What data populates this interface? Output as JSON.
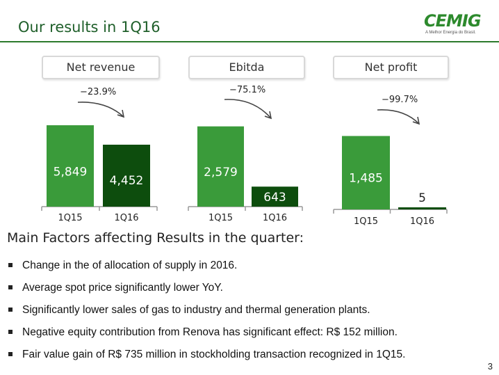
{
  "page": {
    "title": "Our results in 1Q16",
    "logo": {
      "name": "CEMIG",
      "tagline": "A Melhor Energia do Brasil."
    },
    "page_number": "3"
  },
  "section": {
    "heading": "Main Factors affecting Results in the quarter:",
    "factors": [
      "Change in the of allocation of supply in 2016.",
      "Average spot price significantly lower YoY.",
      "Significantly lower sales of gas to industry and thermal generation plants.",
      "Negative equity contribution from Renova has significant effect:  R$ 152 million.",
      "Fair value gain of R$ 735 million in stockholding transaction recognized in 1Q15."
    ]
  },
  "colors": {
    "light_bar": "#3a9b3a",
    "dark_bar": "#0d4d0d",
    "title": "#1f5f2a",
    "rule": "#2b7a2b"
  },
  "chart_data": [
    {
      "type": "bar",
      "title": "Net revenue",
      "categories": [
        "1Q15",
        "1Q16"
      ],
      "values": [
        5849,
        4452
      ],
      "value_labels": [
        "5,849",
        "4,452"
      ],
      "change_label": "−23.9%",
      "ylim": [
        0,
        7000
      ]
    },
    {
      "type": "bar",
      "title": "Ebitda",
      "categories": [
        "1Q15",
        "1Q16"
      ],
      "values": [
        2579,
        643
      ],
      "value_labels": [
        "2,579",
        "643"
      ],
      "change_label": "−75.1%",
      "ylim": [
        0,
        3130
      ]
    },
    {
      "type": "bar",
      "title": "Net profit",
      "categories": [
        "1Q15",
        "1Q16"
      ],
      "values": [
        1485,
        5
      ],
      "value_labels": [
        "1,485",
        "5"
      ],
      "change_label": "−99.7%",
      "ylim": [
        0,
        1970
      ]
    }
  ]
}
